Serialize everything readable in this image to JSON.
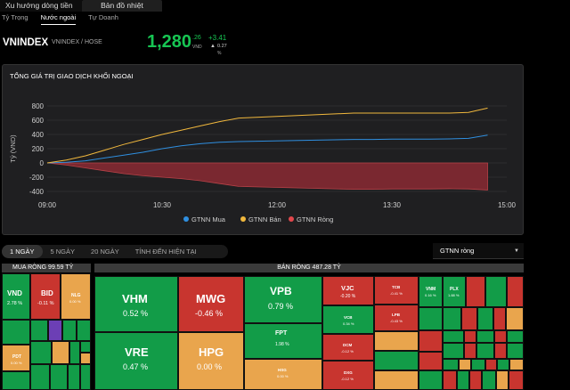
{
  "top_tabs": [
    {
      "label": "Xu hướng dòng tiền"
    },
    {
      "label": "Bản đồ nhiệt"
    }
  ],
  "sub_tabs": [
    {
      "label": "Tỷ Trọng"
    },
    {
      "label": "Nước ngoài"
    },
    {
      "label": "Tự Doanh"
    }
  ],
  "index": {
    "name": "VNINDEX",
    "exchange": "VNINDEX / HOSE",
    "price": "1,280",
    "decimals": ".26",
    "currency": "VND",
    "change": "+3.41",
    "change_arrow": "▲",
    "change_pct": "0.27",
    "pct_sign": "%"
  },
  "chart": {
    "title": "TỔNG GIÁ TRỊ GIAO DỊCH KHỐI NGOẠI",
    "legend": [
      {
        "label": "GTNN Mua",
        "color": "#2f8fe0"
      },
      {
        "label": "GTNN Bán",
        "color": "#f1b83d"
      },
      {
        "label": "GTNN Ròng",
        "color": "#e2474c"
      }
    ]
  },
  "chart_data": {
    "type": "line",
    "title": "TỔNG GIÁ TRỊ GIAO DỊCH KHỐI NGOẠI",
    "ylabel": "Tỷ (VND)",
    "xlabel": "",
    "ylim": [
      -400,
      800
    ],
    "xlim": [
      "09:00",
      "15:00"
    ],
    "x_ticks": [
      "09:00",
      "10:30",
      "12:00",
      "13:30",
      "15:00"
    ],
    "y_ticks": [
      800,
      600,
      400,
      200,
      0,
      -200,
      -400
    ],
    "grid": true,
    "legend_position": "bottom",
    "x": [
      "09:00",
      "09:15",
      "09:30",
      "09:45",
      "10:00",
      "10:15",
      "10:30",
      "10:45",
      "11:00",
      "11:15",
      "11:30",
      "13:00",
      "13:15",
      "13:30",
      "13:45",
      "14:00",
      "14:15",
      "14:30",
      "14:45"
    ],
    "series": [
      {
        "name": "GTNN Mua",
        "color": "#2f8fe0",
        "values": [
          0,
          10,
          30,
          70,
          110,
          150,
          200,
          240,
          270,
          290,
          300,
          330,
          330,
          335,
          335,
          335,
          338,
          345,
          390
        ]
      },
      {
        "name": "GTNN Bán",
        "color": "#f1b83d",
        "values": [
          0,
          40,
          100,
          180,
          260,
          330,
          400,
          460,
          520,
          580,
          630,
          700,
          700,
          700,
          700,
          700,
          700,
          710,
          770
        ]
      },
      {
        "name": "GTNN Ròng",
        "color": "#e2474c",
        "values": [
          0,
          -30,
          -70,
          -110,
          -150,
          -180,
          -200,
          -220,
          -250,
          -290,
          -330,
          -370,
          -370,
          -365,
          -365,
          -365,
          -362,
          -365,
          -380
        ]
      }
    ]
  },
  "periods": [
    {
      "label": "1 NGÀY"
    },
    {
      "label": "5 NGÀY"
    },
    {
      "label": "20 NGÀY"
    },
    {
      "label": "TÍNH ĐẾN HIỆN TẠI"
    }
  ],
  "select": {
    "value": "GTNN ròng",
    "caret": "▼"
  },
  "treemap": {
    "buy_header": "MUA RÒNG 99.59 TỶ",
    "sell_header": "BÁN RÒNG 487.28 TỶ",
    "tiles": {
      "vnd": {
        "ticker": "VND",
        "value": "2.78 %"
      },
      "bid": {
        "ticker": "BID",
        "value": "-0.11 %"
      },
      "nlg": {
        "ticker": "NLG",
        "value": "0.00 %"
      },
      "pdt": {
        "ticker": "PDT",
        "value": "0.00 %"
      },
      "vhm": {
        "ticker": "VHM",
        "value": "0.52 %"
      },
      "vre": {
        "ticker": "VRE",
        "value": "0.47 %"
      },
      "mwg": {
        "ticker": "MWG",
        "value": "-0.46 %"
      },
      "hpg": {
        "ticker": "HPG",
        "value": "0.00 %"
      },
      "vpb": {
        "ticker": "VPB",
        "value": "0.79 %"
      },
      "fpt": {
        "ticker": "FPT",
        "value": "1.98 %"
      },
      "hsg": {
        "ticker": "HSG",
        "value": "0.00 %"
      },
      "vjc": {
        "ticker": "VJC",
        "value": "-0.20 %"
      },
      "vcb": {
        "ticker": "VCB",
        "value": "0.34 %"
      },
      "dcm": {
        "ticker": "DCM",
        "value": "-0.12 %"
      },
      "dxg": {
        "ticker": "DXG",
        "value": "-0.12 %"
      },
      "tcb": {
        "ticker": "TCB",
        "value": "-0.41 %"
      },
      "lpb": {
        "ticker": "LPB",
        "value": "-0.43 %"
      },
      "vnm": {
        "ticker": "VNM",
        "value": "0.16 %"
      },
      "plx": {
        "ticker": "PLX",
        "value": "1.88 %"
      }
    }
  }
}
